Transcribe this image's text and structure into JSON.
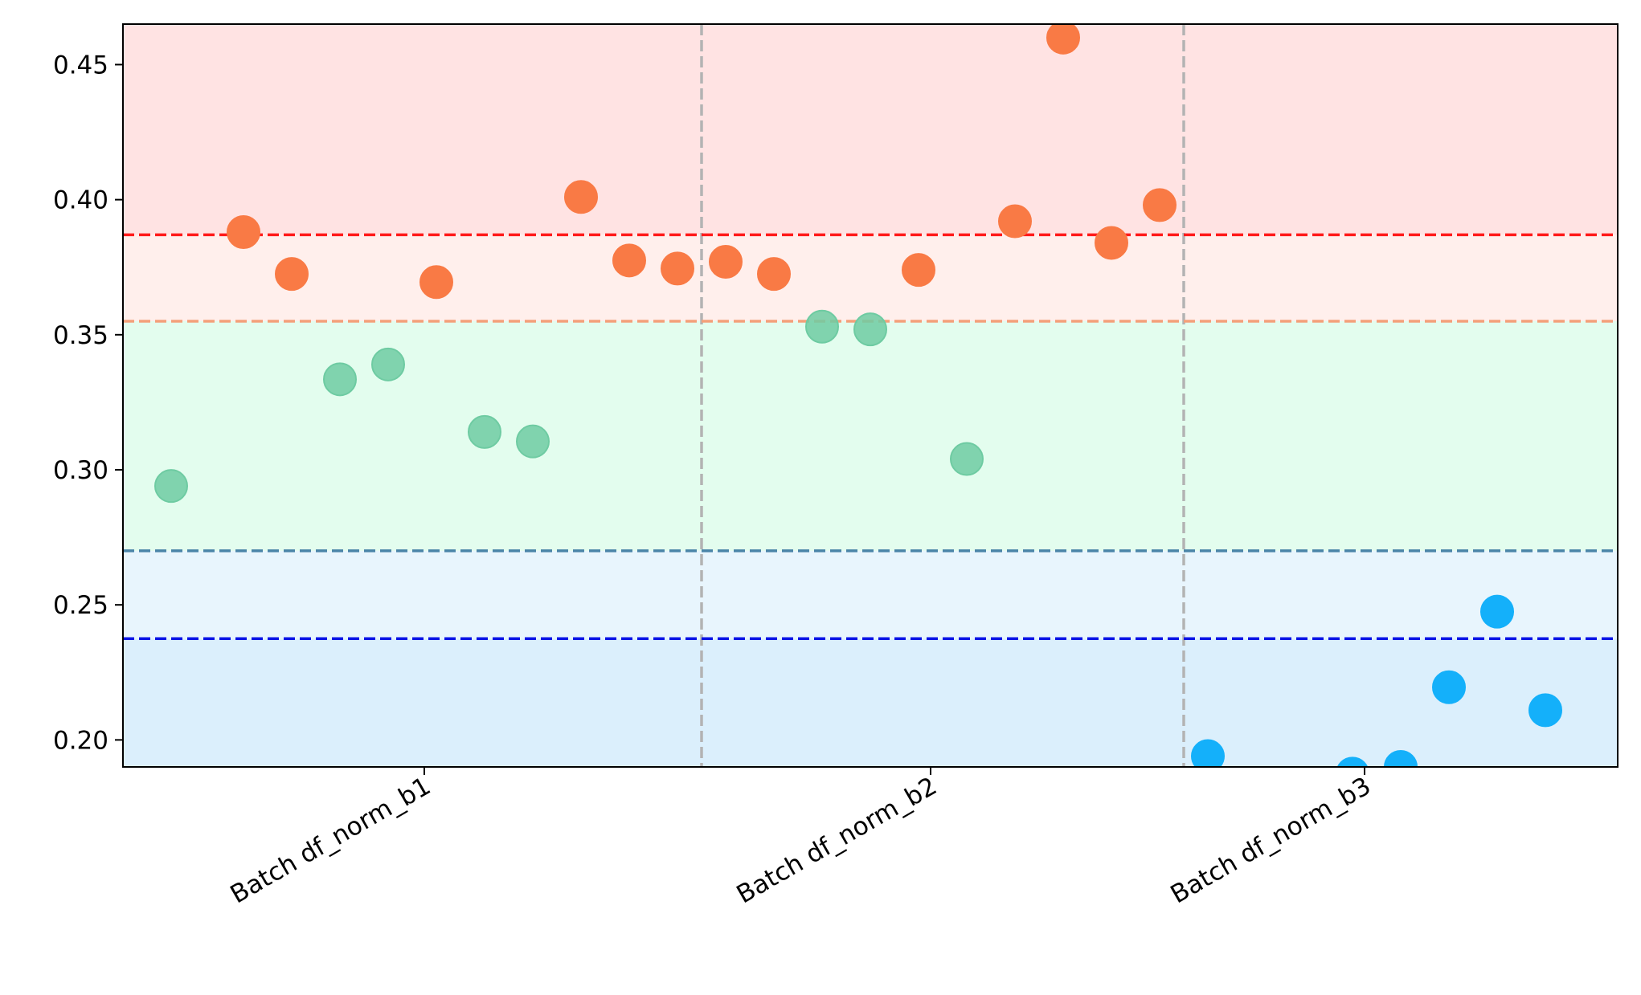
{
  "chart_data": {
    "type": "scatter",
    "title": "",
    "xlabel": "",
    "ylabel": "",
    "ylim": [
      0.19,
      0.465
    ],
    "yticks": [
      0.2,
      0.25,
      0.3,
      0.35,
      0.4,
      0.45
    ],
    "ytick_labels": [
      "0.20",
      "0.25",
      "0.30",
      "0.35",
      "0.40",
      "0.45"
    ],
    "xlim": [
      0,
      31
    ],
    "categories": [
      {
        "label": "Batch df_norm_b1",
        "x": 6.25
      },
      {
        "label": "Batch df_norm_b2",
        "x": 16.75
      },
      {
        "label": "Batch df_norm_b3",
        "x": 25.75
      }
    ],
    "group_separators": [
      12,
      22
    ],
    "thresholds": [
      {
        "value": 0.387,
        "color": "#ff1a1a"
      },
      {
        "value": 0.355,
        "color": "#f4a07a"
      },
      {
        "value": 0.27,
        "color": "#4a84a8"
      },
      {
        "value": 0.2375,
        "color": "#0a14e6"
      }
    ],
    "bands": [
      {
        "from": 0.387,
        "to": 0.465,
        "color": "#ffe3e3"
      },
      {
        "from": 0.355,
        "to": 0.387,
        "color": "#ffefec"
      },
      {
        "from": 0.27,
        "to": 0.355,
        "color": "#e3fdee"
      },
      {
        "from": 0.2375,
        "to": 0.27,
        "color": "#e8f5fd"
      },
      {
        "from": 0.19,
        "to": 0.2375,
        "color": "#dbeffc"
      }
    ],
    "series": [
      {
        "color": "#f97a45",
        "points": [
          {
            "x": 2.5,
            "y": 0.388
          },
          {
            "x": 3.5,
            "y": 0.3725
          },
          {
            "x": 6.5,
            "y": 0.3695
          },
          {
            "x": 9.5,
            "y": 0.401
          },
          {
            "x": 10.5,
            "y": 0.3775
          },
          {
            "x": 11.5,
            "y": 0.3745
          },
          {
            "x": 12.5,
            "y": 0.377
          },
          {
            "x": 13.5,
            "y": 0.3725
          },
          {
            "x": 16.5,
            "y": 0.374
          },
          {
            "x": 18.5,
            "y": 0.392
          },
          {
            "x": 19.5,
            "y": 0.46
          },
          {
            "x": 20.5,
            "y": 0.384
          },
          {
            "x": 21.5,
            "y": 0.398
          }
        ]
      },
      {
        "color": "#6ecba2",
        "points": [
          {
            "x": 1.0,
            "y": 0.294
          },
          {
            "x": 4.5,
            "y": 0.3335
          },
          {
            "x": 5.5,
            "y": 0.339
          },
          {
            "x": 7.5,
            "y": 0.314
          },
          {
            "x": 8.5,
            "y": 0.3105
          },
          {
            "x": 14.5,
            "y": 0.353
          },
          {
            "x": 15.5,
            "y": 0.352
          },
          {
            "x": 17.5,
            "y": 0.304
          }
        ]
      },
      {
        "color": "#14b0fa",
        "points": [
          {
            "x": 22.5,
            "y": 0.194
          },
          {
            "x": 25.5,
            "y": 0.1875
          },
          {
            "x": 26.5,
            "y": 0.19
          },
          {
            "x": 27.5,
            "y": 0.2195
          },
          {
            "x": 28.5,
            "y": 0.2475
          },
          {
            "x": 29.5,
            "y": 0.211
          }
        ]
      }
    ]
  }
}
